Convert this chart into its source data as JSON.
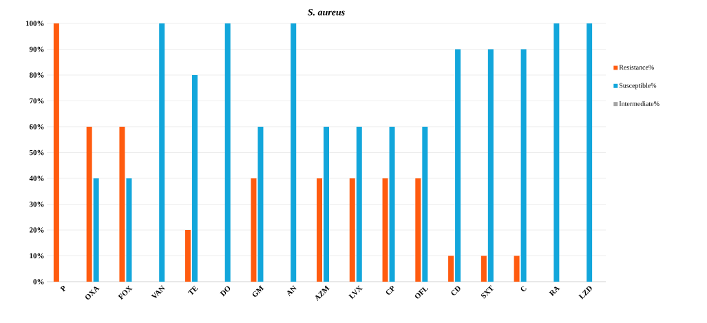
{
  "chart_data": {
    "type": "bar",
    "title": "S. aureus",
    "categories": [
      "P",
      "OXA",
      "FOX",
      "VAN",
      "TE",
      "DO",
      "GM",
      "AN",
      "AZM",
      "LVX",
      "CP",
      "OFL",
      "CD",
      "SXT",
      "C",
      "RA",
      "LZD"
    ],
    "series": [
      {
        "name": "Resistance%",
        "color": "#ff5b0f",
        "values": [
          100,
          60,
          60,
          0,
          20,
          0,
          40,
          0,
          40,
          40,
          40,
          40,
          10,
          10,
          10,
          0,
          0
        ]
      },
      {
        "name": "Susceptible%",
        "color": "#12a6db",
        "values": [
          0,
          40,
          40,
          100,
          80,
          100,
          60,
          100,
          60,
          60,
          60,
          60,
          90,
          90,
          90,
          100,
          100
        ]
      },
      {
        "name": "Intermediate%",
        "color": "#a5a5a5",
        "values": [
          0,
          0,
          0,
          0,
          0,
          0,
          0,
          0,
          0,
          0,
          0,
          0,
          0,
          0,
          0,
          0,
          0
        ]
      }
    ],
    "ylim": [
      0,
      100
    ],
    "yticks": [
      {
        "value": 0,
        "label": "0%"
      },
      {
        "value": 10,
        "label": "10%"
      },
      {
        "value": 20,
        "label": "20%"
      },
      {
        "value": 30,
        "label": "30%"
      },
      {
        "value": 40,
        "label": "40%"
      },
      {
        "value": 50,
        "label": "50%"
      },
      {
        "value": 60,
        "label": "60%"
      },
      {
        "value": 70,
        "label": "70%"
      },
      {
        "value": 80,
        "label": "80%"
      },
      {
        "value": 90,
        "label": "90%"
      },
      {
        "value": 100,
        "label": "100%"
      }
    ],
    "grid": "y",
    "legend": "right"
  }
}
